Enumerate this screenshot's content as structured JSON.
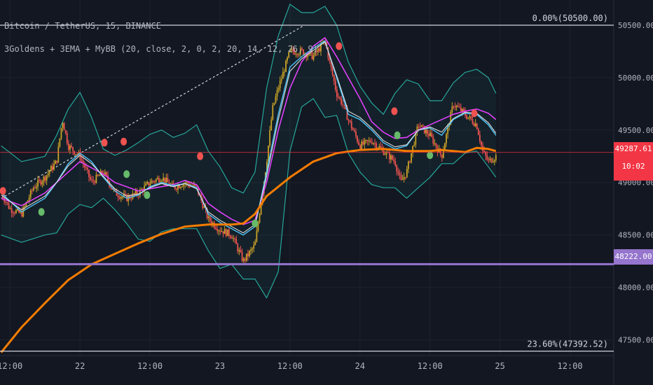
{
  "legend": {
    "symbol_line": "Bitcoin / TetherUS, 15, BINANCE",
    "indicator_line": "3Goldens + 3EMA + MyBB (20, close, 2, 0, 2, 20, 14, 12, 26, 9)"
  },
  "fib_labels": {
    "top": "0.00%(50500.00)",
    "bottom": "23.60%(47392.52)"
  },
  "price_badges": {
    "current_price": "49287.61",
    "countdown": "10:02",
    "level_price": "48222.00"
  },
  "colors": {
    "background": "#131722",
    "grid": "#1e222d",
    "up_candle": "#c9a227",
    "down_candle": "#ef5350",
    "bb_band": "#26a69a",
    "ema_fast": "#4fc3f7",
    "ema_mid": "#e0e0e0",
    "ema_slow": "#e040fb",
    "ma_long": "#f57c00",
    "level_line": "#9575cd",
    "current_price": "#f23645",
    "fib_line": "#d1d4dc",
    "signal_buy": "#66bb6a",
    "signal_sell": "#ef5350"
  },
  "chart_data": {
    "type": "line",
    "symbol": "Bitcoin / TetherUS",
    "interval": "15",
    "exchange": "BINANCE",
    "x_tick_labels": [
      "12:00",
      "22",
      "12:00",
      "23",
      "12:00",
      "24",
      "12:00",
      "25",
      "12:00"
    ],
    "x_tick_hours": [
      12,
      24,
      36,
      48,
      60,
      72,
      84,
      96,
      108
    ],
    "y_tick_labels": [
      "47500.00",
      "48000.00",
      "48500.00",
      "49000.00",
      "49500.00",
      "50000.00",
      "50500.00"
    ],
    "ylim": [
      47350,
      50740
    ],
    "hours_range": [
      10.3,
      115.5
    ],
    "fib_levels": [
      {
        "label": "0.00%(50500.00)",
        "price": 50500.0
      },
      {
        "label": "23.60%(47392.52)",
        "price": 47392.52
      }
    ],
    "horizontal_level": 48222.0,
    "current_price": 49287.61,
    "trend_line": {
      "from": [
        10.5,
        48850
      ],
      "to": [
        62.5,
        50500
      ]
    },
    "series": [
      {
        "key": "ma_long",
        "x": [
          10.5,
          14,
          18,
          22,
          26,
          30,
          34,
          38,
          42,
          46,
          50,
          52,
          54,
          56,
          60,
          64,
          68,
          72,
          76,
          80,
          84,
          86,
          88,
          90,
          92,
          94,
          95.3
        ],
        "y": [
          47380,
          47620,
          47850,
          48070,
          48220,
          48320,
          48420,
          48510,
          48580,
          48600,
          48600,
          48610,
          48700,
          48870,
          49050,
          49200,
          49280,
          49310,
          49320,
          49300,
          49300,
          49310,
          49300,
          49290,
          49330,
          49320,
          49300
        ]
      },
      {
        "key": "ema_slow",
        "x": [
          10.5,
          14,
          18,
          20,
          22,
          24,
          26,
          28,
          30,
          32,
          34,
          36,
          38,
          40,
          42,
          44,
          46,
          48,
          50,
          52,
          54,
          56,
          58,
          60,
          62,
          64,
          66,
          68,
          70,
          72,
          74,
          76,
          78,
          80,
          82,
          84,
          86,
          88,
          90,
          92,
          94,
          95.3
        ],
        "y": [
          48850,
          48780,
          48900,
          49000,
          49100,
          49200,
          49140,
          49080,
          49000,
          48960,
          48920,
          48940,
          48960,
          48980,
          49020,
          48980,
          48800,
          48720,
          48650,
          48600,
          48640,
          49000,
          49500,
          49900,
          50150,
          50300,
          50380,
          50200,
          50000,
          49800,
          49580,
          49480,
          49420,
          49430,
          49500,
          49550,
          49600,
          49650,
          49680,
          49700,
          49660,
          49600
        ]
      },
      {
        "key": "ema_fast",
        "x": [
          10.5,
          14,
          18,
          20,
          22,
          24,
          26,
          28,
          30,
          32,
          34,
          36,
          38,
          40,
          42,
          44,
          46,
          48,
          50,
          52,
          54,
          56,
          58,
          60,
          62,
          64,
          66,
          68,
          70,
          72,
          74,
          76,
          78,
          80,
          82,
          84,
          86,
          88,
          90,
          92,
          94,
          95.3
        ],
        "y": [
          48900,
          48720,
          48850,
          49000,
          49180,
          49280,
          49200,
          49050,
          48920,
          48850,
          48880,
          48960,
          49000,
          48970,
          48990,
          48950,
          48700,
          48620,
          48560,
          48500,
          48580,
          49100,
          49650,
          50100,
          50200,
          50280,
          50350,
          50000,
          49650,
          49600,
          49500,
          49380,
          49320,
          49350,
          49500,
          49520,
          49450,
          49600,
          49660,
          49650,
          49550,
          49450
        ]
      },
      {
        "key": "ema_mid",
        "x": [
          10.5,
          14,
          18,
          20,
          22,
          24,
          26,
          28,
          30,
          32,
          34,
          36,
          38,
          40,
          42,
          44,
          46,
          48,
          50,
          52,
          54,
          56,
          58,
          60,
          62,
          64,
          66,
          68,
          70,
          72,
          74,
          76,
          78,
          80,
          82,
          84,
          86,
          88,
          90,
          92,
          94,
          95.3
        ],
        "y": [
          48880,
          48740,
          48870,
          49000,
          49160,
          49260,
          49180,
          49060,
          48940,
          48870,
          48890,
          48950,
          48990,
          48960,
          48990,
          48940,
          48720,
          48640,
          48580,
          48520,
          48600,
          49060,
          49600,
          50060,
          50180,
          50260,
          50340,
          50020,
          49680,
          49620,
          49520,
          49400,
          49340,
          49360,
          49500,
          49530,
          49480,
          49610,
          49670,
          49660,
          49570,
          49470
        ]
      },
      {
        "key": "bb_upper",
        "x": [
          10.5,
          14,
          18,
          20,
          22,
          24,
          26,
          28,
          30,
          32,
          34,
          36,
          38,
          40,
          42,
          44,
          46,
          48,
          50,
          52,
          54,
          56,
          58,
          60,
          62,
          64,
          66,
          68,
          70,
          72,
          74,
          76,
          78,
          80,
          82,
          84,
          86,
          88,
          90,
          92,
          94,
          95.3
        ],
        "y": [
          49350,
          49200,
          49250,
          49450,
          49700,
          49860,
          49620,
          49320,
          49260,
          49310,
          49380,
          49460,
          49500,
          49430,
          49470,
          49550,
          49300,
          49150,
          48950,
          48900,
          49100,
          49900,
          50400,
          50700,
          50620,
          50620,
          50680,
          50500,
          50150,
          49920,
          49760,
          49650,
          49850,
          49980,
          49940,
          49780,
          49780,
          49950,
          50050,
          50080,
          50000,
          49850
        ]
      },
      {
        "key": "bb_lower",
        "x": [
          10.5,
          14,
          18,
          20,
          22,
          24,
          26,
          28,
          30,
          32,
          34,
          36,
          38,
          40,
          42,
          44,
          46,
          48,
          50,
          52,
          54,
          56,
          58,
          60,
          62,
          64,
          66,
          68,
          70,
          72,
          74,
          76,
          78,
          80,
          82,
          84,
          86,
          88,
          90,
          92,
          94,
          95.3
        ],
        "y": [
          48500,
          48430,
          48500,
          48520,
          48700,
          48790,
          48760,
          48850,
          48740,
          48610,
          48460,
          48440,
          48530,
          48560,
          48560,
          48560,
          48350,
          48180,
          48220,
          48080,
          48080,
          47900,
          48150,
          49300,
          49720,
          49800,
          49620,
          49640,
          49280,
          49100,
          48980,
          48950,
          48950,
          48850,
          48950,
          49050,
          49180,
          49180,
          49280,
          49300,
          49150,
          49050
        ]
      },
      {
        "key": "price_path",
        "x": [
          10.5,
          12,
          14,
          16,
          18,
          20,
          21,
          22,
          24,
          26,
          28,
          30,
          32,
          34,
          36,
          38,
          40,
          42,
          44,
          46,
          48,
          50,
          52,
          54,
          56,
          57,
          58,
          60,
          62,
          64,
          66,
          68,
          69,
          70,
          72,
          74,
          76,
          78,
          79,
          80,
          82,
          84,
          86,
          88,
          90,
          92,
          93,
          94,
          95.3
        ],
        "y": [
          48900,
          48750,
          48700,
          48950,
          49050,
          49200,
          49600,
          49350,
          49250,
          49000,
          49100,
          48900,
          48850,
          48900,
          49000,
          49050,
          48950,
          49000,
          48950,
          48650,
          48550,
          48500,
          48250,
          48400,
          49200,
          49700,
          49900,
          50250,
          50250,
          50200,
          50350,
          49850,
          49750,
          49600,
          49350,
          49400,
          49300,
          49200,
          49000,
          49100,
          49550,
          49450,
          49250,
          49750,
          49650,
          49550,
          49300,
          49200,
          49250
        ]
      }
    ],
    "signals": [
      {
        "type": "sell",
        "x": 10.8,
        "price": 48920
      },
      {
        "type": "buy",
        "x": 17.4,
        "price": 48720
      },
      {
        "type": "sell",
        "x": 28.2,
        "price": 49380
      },
      {
        "type": "sell",
        "x": 31.5,
        "price": 49390
      },
      {
        "type": "buy",
        "x": 32.0,
        "price": 49080
      },
      {
        "type": "buy",
        "x": 35.5,
        "price": 48880
      },
      {
        "type": "sell",
        "x": 44.6,
        "price": 49250
      },
      {
        "type": "buy",
        "x": 54.0,
        "price": 48610
      },
      {
        "type": "sell",
        "x": 68.4,
        "price": 50300
      },
      {
        "type": "sell",
        "x": 77.9,
        "price": 49680
      },
      {
        "type": "buy",
        "x": 78.4,
        "price": 49450
      },
      {
        "type": "buy",
        "x": 84.0,
        "price": 49260
      },
      {
        "type": "sell",
        "x": 91.6,
        "price": 49660
      }
    ]
  }
}
